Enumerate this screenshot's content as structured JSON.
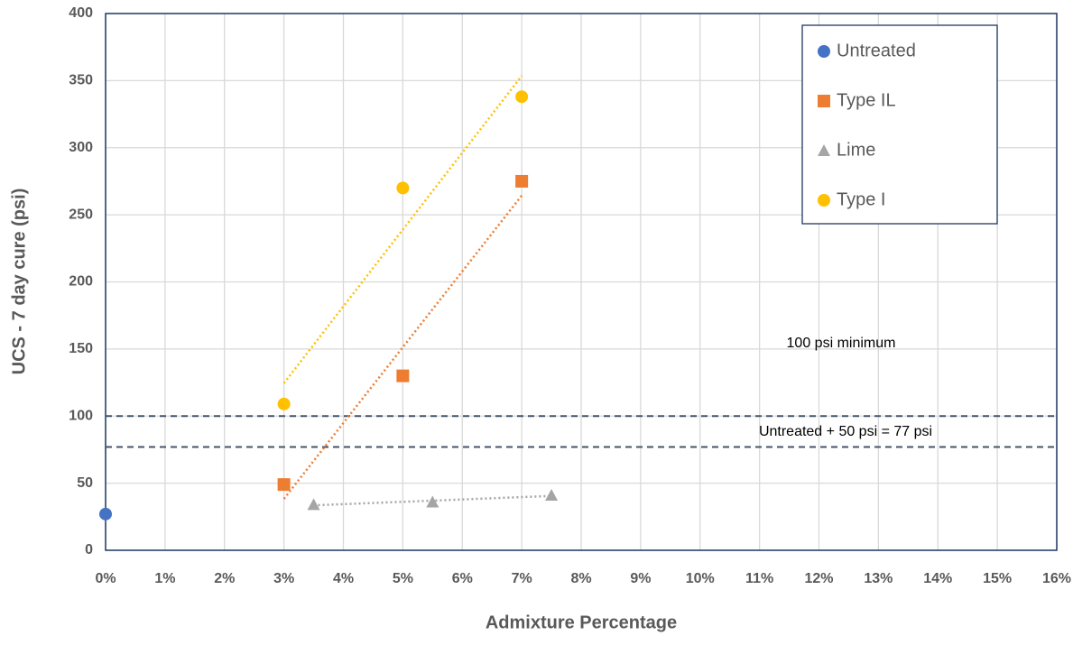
{
  "chart_data": {
    "type": "scatter",
    "x_label": "Admixture Percentage",
    "y_label": "UCS - 7 day cure (psi)",
    "xlim": [
      0,
      16
    ],
    "xticks": [
      {
        "value": 0,
        "label": "0%"
      },
      {
        "value": 1,
        "label": "1%"
      },
      {
        "value": 2,
        "label": "2%"
      },
      {
        "value": 3,
        "label": "3%"
      },
      {
        "value": 4,
        "label": "4%"
      },
      {
        "value": 5,
        "label": "5%"
      },
      {
        "value": 6,
        "label": "6%"
      },
      {
        "value": 7,
        "label": "7%"
      },
      {
        "value": 8,
        "label": "8%"
      },
      {
        "value": 9,
        "label": "9%"
      },
      {
        "value": 10,
        "label": "10%"
      },
      {
        "value": 11,
        "label": "11%"
      },
      {
        "value": 12,
        "label": "12%"
      },
      {
        "value": 13,
        "label": "13%"
      },
      {
        "value": 14,
        "label": "14%"
      },
      {
        "value": 15,
        "label": "15%"
      },
      {
        "value": 16,
        "label": "16%"
      }
    ],
    "ylim": [
      0,
      400
    ],
    "yticks": [
      0,
      50,
      100,
      150,
      200,
      250,
      300,
      350,
      400
    ],
    "grid": true,
    "legend": "upper right",
    "series": [
      {
        "name": "Untreated",
        "color": "#4472c4",
        "marker": "circle",
        "trendline": false,
        "x": [
          0
        ],
        "values": [
          27
        ]
      },
      {
        "name": "Type IL",
        "color": "#ed7d31",
        "marker": "square",
        "trendline": true,
        "x": [
          3,
          5,
          7
        ],
        "values": [
          49,
          130,
          275
        ]
      },
      {
        "name": "Lime",
        "color": "#a5a5a5",
        "marker": "triangle",
        "trendline": true,
        "x": [
          3.5,
          5.5,
          7.5
        ],
        "values": [
          34,
          36,
          41
        ]
      },
      {
        "name": "Type I",
        "color": "#ffc000",
        "marker": "circle",
        "trendline": true,
        "x": [
          3,
          5,
          7
        ],
        "values": [
          109,
          270,
          338
        ]
      }
    ],
    "reference_lines": [
      {
        "value": 100,
        "label": "100 psi minimum",
        "color": "#44546a"
      },
      {
        "value": 77,
        "label": "Untreated + 50 psi = 77 psi",
        "color": "#44546a"
      }
    ]
  }
}
